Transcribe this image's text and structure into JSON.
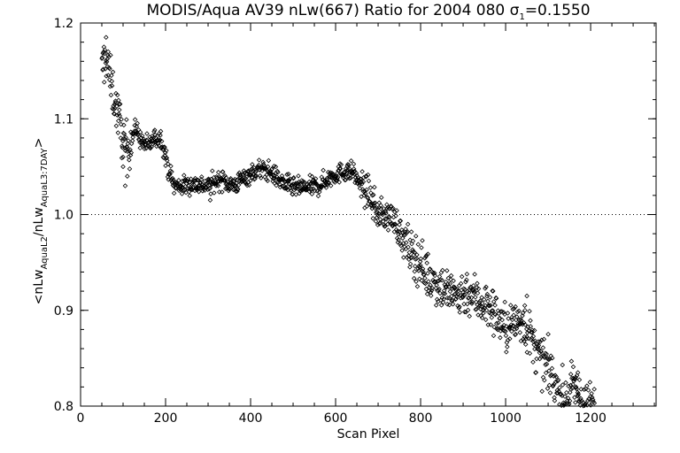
{
  "chart_data": {
    "type": "scatter",
    "title": {
      "main": "MODIS/Aqua AV39 nLw(667) Ratio for 2004 080 ",
      "sigma_symbol": "σ",
      "sigma_sub": "1",
      "sigma_value": "=0.1550"
    },
    "xlabel": "Scan Pixel",
    "ylabel": {
      "open": "<nLw",
      "sub1": "AquaL2",
      "mid": "/nLw",
      "sub2": "AquaL3:7DAY",
      "close": ">"
    },
    "xlim": [
      0,
      1354
    ],
    "ylim": [
      0.8,
      1.2
    ],
    "xticks": [
      0,
      200,
      400,
      600,
      800,
      1000,
      1200
    ],
    "yticks": [
      0.8,
      0.9,
      1.0,
      1.1,
      1.2
    ],
    "ytick_labels": [
      "0.8",
      "0.9",
      "1.0",
      "1.1",
      "1.2"
    ],
    "reference_line": {
      "y": 1.0,
      "style": "dotted"
    },
    "marker": "diamond",
    "grid": false,
    "trend": {
      "x": [
        50,
        60,
        70,
        80,
        95,
        105,
        115,
        130,
        145,
        160,
        175,
        190,
        205,
        220,
        240,
        270,
        300,
        330,
        360,
        390,
        420,
        445,
        470,
        500,
        530,
        560,
        590,
        620,
        640,
        660,
        680,
        700,
        720,
        740,
        760,
        790,
        820,
        850,
        880,
        910,
        940,
        970,
        1000,
        1020,
        1040,
        1060,
        1080,
        1100,
        1120,
        1140,
        1160,
        1175,
        1190,
        1210
      ],
      "y": [
        1.15,
        1.165,
        1.14,
        1.12,
        1.09,
        1.07,
        1.075,
        1.09,
        1.075,
        1.072,
        1.08,
        1.08,
        1.05,
        1.03,
        1.03,
        1.032,
        1.03,
        1.037,
        1.03,
        1.04,
        1.047,
        1.045,
        1.035,
        1.028,
        1.028,
        1.03,
        1.04,
        1.045,
        1.045,
        1.03,
        1.02,
        1.0,
        1.0,
        0.995,
        0.97,
        0.955,
        0.935,
        0.925,
        0.915,
        0.92,
        0.91,
        0.9,
        0.88,
        0.887,
        0.89,
        0.87,
        0.85,
        0.84,
        0.82,
        0.805,
        0.82,
        0.81,
        0.8,
        0.8
      ]
    },
    "extra_points": [
      {
        "x": 60,
        "y": 1.185
      },
      {
        "x": 55,
        "y": 1.175
      },
      {
        "x": 65,
        "y": 1.17
      },
      {
        "x": 100,
        "y": 1.05
      },
      {
        "x": 105,
        "y": 1.03
      },
      {
        "x": 110,
        "y": 1.04
      },
      {
        "x": 100,
        "y": 1.06
      },
      {
        "x": 80,
        "y": 1.105
      },
      {
        "x": 90,
        "y": 1.105
      },
      {
        "x": 305,
        "y": 1.015
      },
      {
        "x": 1050,
        "y": 0.915
      },
      {
        "x": 1045,
        "y": 0.905
      },
      {
        "x": 1170,
        "y": 0.835
      },
      {
        "x": 1165,
        "y": 0.83
      }
    ]
  }
}
